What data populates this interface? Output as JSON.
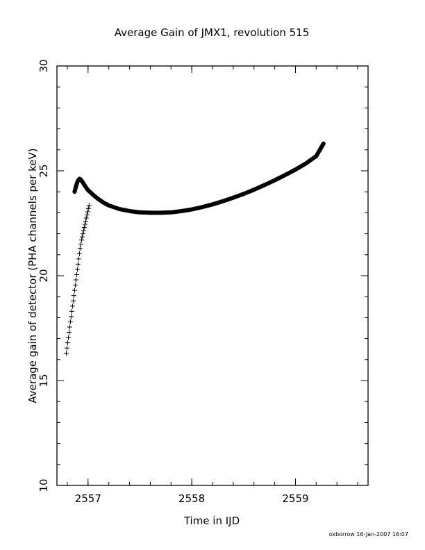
{
  "chart_data": {
    "type": "scatter",
    "title": "Average Gain of JMX1, revolution 515",
    "xlabel": "Time in IJD",
    "ylabel": "Average gain of detector (PHA channels per keV)",
    "xlim": [
      2556.7,
      2559.7
    ],
    "ylim": [
      10,
      30
    ],
    "xticks": [
      2557,
      2558,
      2559
    ],
    "yticks": [
      10,
      15,
      20,
      25,
      30
    ],
    "grid": false,
    "marker": "plus",
    "series": [
      {
        "x": [
          2556.79,
          2556.797,
          2556.803,
          2556.81,
          2556.817,
          2556.823,
          2556.83,
          2556.837,
          2556.843,
          2556.85,
          2556.857,
          2556.863,
          2556.87,
          2556.877,
          2556.883,
          2556.89,
          2556.897,
          2556.903,
          2556.91,
          2556.917,
          2556.923,
          2556.93,
          2556.937,
          2556.943,
          2556.95,
          2556.957,
          2556.963,
          2556.97,
          2556.977,
          2556.983,
          2556.99,
          2556.997,
          2557.003,
          2557.01
        ],
        "y": [
          16.3,
          16.55,
          16.8,
          17.05,
          17.3,
          17.55,
          17.8,
          18.05,
          18.3,
          18.55,
          18.8,
          19.05,
          19.3,
          19.55,
          19.8,
          20.05,
          20.3,
          20.55,
          20.8,
          21.05,
          21.3,
          21.5,
          21.7,
          21.85,
          22.0,
          22.15,
          22.3,
          22.45,
          22.6,
          22.75,
          22.9,
          23.05,
          23.2,
          23.35
        ]
      },
      {
        "x": [
          2556.87,
          2556.878,
          2556.886,
          2556.894,
          2556.902,
          2556.91,
          2556.918,
          2556.926,
          2556.934,
          2556.942,
          2556.95,
          2556.958,
          2556.966,
          2556.974,
          2556.982,
          2556.99,
          2557.0,
          2557.05,
          2557.1,
          2557.15,
          2557.2,
          2557.3,
          2557.4,
          2557.5,
          2557.6,
          2557.7,
          2557.8,
          2557.9,
          2558.0,
          2558.1,
          2558.2,
          2558.3,
          2558.4,
          2558.5,
          2558.6,
          2558.7,
          2558.8,
          2558.9,
          2559.0,
          2559.1,
          2559.2,
          2559.27
        ],
        "y": [
          24.0,
          24.15,
          24.3,
          24.42,
          24.52,
          24.58,
          24.62,
          24.6,
          24.56,
          24.5,
          24.44,
          24.38,
          24.32,
          24.26,
          24.2,
          24.14,
          24.08,
          23.85,
          23.65,
          23.48,
          23.35,
          23.18,
          23.08,
          23.02,
          23.0,
          23.0,
          23.02,
          23.08,
          23.16,
          23.27,
          23.4,
          23.55,
          23.72,
          23.9,
          24.1,
          24.32,
          24.55,
          24.8,
          25.06,
          25.35,
          25.7,
          26.3
        ]
      }
    ]
  },
  "footer": {
    "stamp": "oxborrow 16-Jan-2007 16:07"
  }
}
